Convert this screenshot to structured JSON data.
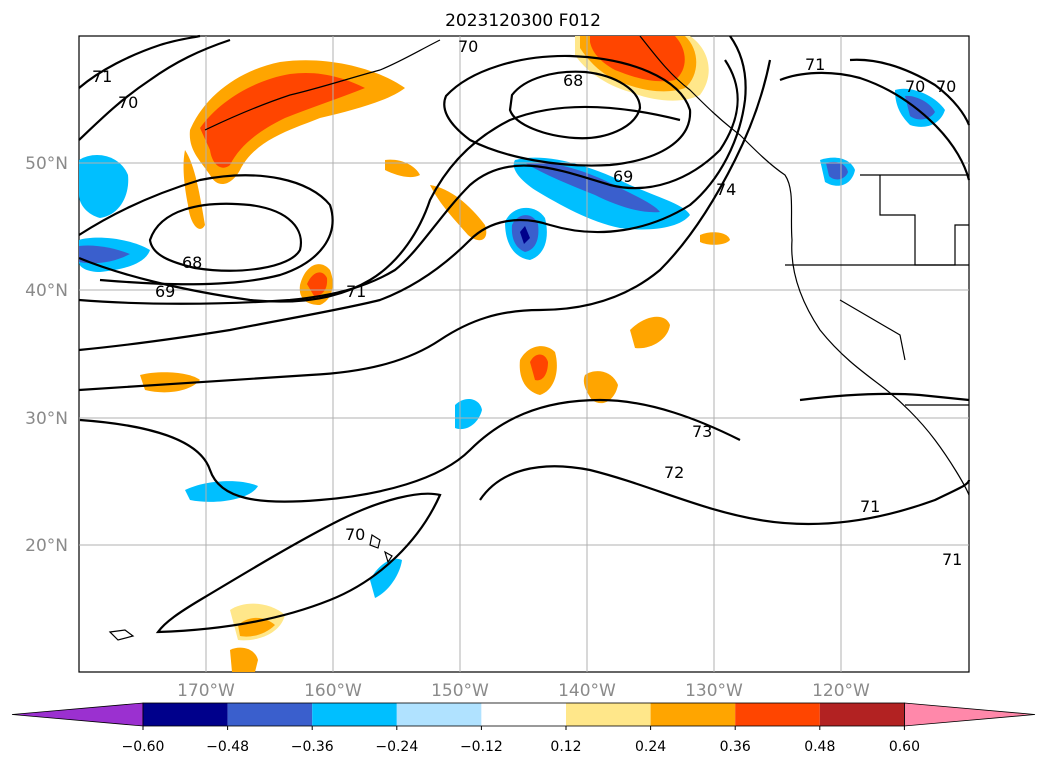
{
  "title": "2023120300 F012",
  "latitude_labels": [
    "50°N",
    "40°N",
    "30°N",
    "20°N"
  ],
  "longitude_labels": [
    "170°W",
    "160°W",
    "150°W",
    "140°W",
    "130°W",
    "120°W"
  ],
  "contour_labels": [
    "70",
    "71",
    "70",
    "68",
    "71",
    "70",
    "70",
    "69",
    "74",
    "68",
    "69",
    "71",
    "73",
    "72",
    "71",
    "70",
    "71"
  ],
  "colorbar": {
    "tick_labels": [
      "−0.60",
      "−0.48",
      "−0.36",
      "−0.24",
      "−0.12",
      "0.12",
      "0.24",
      "0.36",
      "0.48",
      "0.60"
    ],
    "colors": [
      "#9b30d0",
      "#00008b",
      "#3a5fcd",
      "#00bfff",
      "#b0e2ff",
      "#ffffff",
      "#ffe78a",
      "#ffa500",
      "#ff4500",
      "#b22222",
      "#ff88aa"
    ]
  }
}
